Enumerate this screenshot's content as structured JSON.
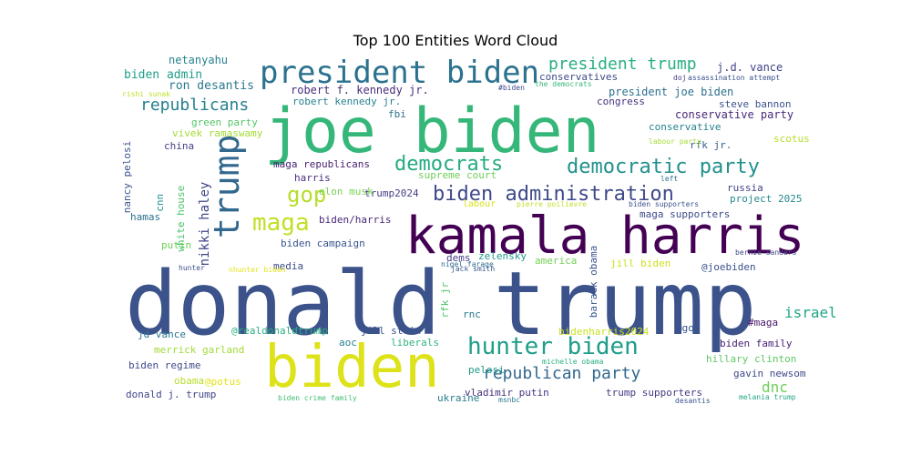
{
  "chart_data": {
    "type": "wordcloud",
    "title": "Top 100 Entities Word Cloud",
    "words": [
      {
        "text": "donald trump",
        "color": "#3b528b"
      },
      {
        "text": "joe biden",
        "color": "#35b779"
      },
      {
        "text": "kamala harris",
        "color": "#440154"
      },
      {
        "text": "biden",
        "color": "#dde318"
      },
      {
        "text": "president biden",
        "color": "#2c728e"
      },
      {
        "text": "trump",
        "color": "#31688e"
      },
      {
        "text": "hunter biden",
        "color": "#1f9e89"
      },
      {
        "text": "biden administration",
        "color": "#3e4989"
      },
      {
        "text": "democratic party",
        "color": "#21918c"
      },
      {
        "text": "democrats",
        "color": "#25ab82"
      },
      {
        "text": "maga",
        "color": "#c2df23"
      },
      {
        "text": "gop",
        "color": "#b5de2b"
      },
      {
        "text": "republicans",
        "color": "#27808e"
      },
      {
        "text": "president trump",
        "color": "#29af7f"
      },
      {
        "text": "republican party",
        "color": "#31688e"
      },
      {
        "text": "israel",
        "color": "#21a685"
      },
      {
        "text": "nikki haley",
        "color": "#414487"
      },
      {
        "text": "dnc",
        "color": "#6ece58"
      },
      {
        "text": "biden admin",
        "color": "#1f9e89"
      },
      {
        "text": "ron desantis",
        "color": "#2a788e"
      },
      {
        "text": "netanyahu",
        "color": "#26828e"
      },
      {
        "text": "j.d. vance",
        "color": "#404387"
      },
      {
        "text": "robert f. kennedy jr.",
        "color": "#472c7a"
      },
      {
        "text": "robert kennedy jr.",
        "color": "#26818e"
      },
      {
        "text": "president joe biden",
        "color": "#2d708e"
      },
      {
        "text": "conservative party",
        "color": "#482878"
      },
      {
        "text": "steve bannon",
        "color": "#3b528b"
      },
      {
        "text": "conservatives",
        "color": "#3e4a89"
      },
      {
        "text": "conservative",
        "color": "#25838e"
      },
      {
        "text": "congress",
        "color": "#46327e"
      },
      {
        "text": "green party",
        "color": "#54c568"
      },
      {
        "text": "vivek ramaswamy",
        "color": "#a5db36"
      },
      {
        "text": "nancy pelosi",
        "color": "#3a548c"
      },
      {
        "text": "china",
        "color": "#433e85"
      },
      {
        "text": "rfk jr.",
        "color": "#34608d"
      },
      {
        "text": "scotus",
        "color": "#b5de2b"
      },
      {
        "text": "maga republicans",
        "color": "#482071"
      },
      {
        "text": "supreme court",
        "color": "#6ece58"
      },
      {
        "text": "harris",
        "color": "#472d7b"
      },
      {
        "text": "trump2024",
        "color": "#423f85"
      },
      {
        "text": "elon musk",
        "color": "#7ad151"
      },
      {
        "text": "biden/harris",
        "color": "#482878"
      },
      {
        "text": "white house",
        "color": "#4ac16d"
      },
      {
        "text": "russia",
        "color": "#404387"
      },
      {
        "text": "project 2025",
        "color": "#23898e"
      },
      {
        "text": "maga supporters",
        "color": "#3e4c8a"
      },
      {
        "text": "hamas",
        "color": "#2c718e"
      },
      {
        "text": "cnn",
        "color": "#21908d"
      },
      {
        "text": "putin",
        "color": "#6ece58"
      },
      {
        "text": "biden campaign",
        "color": "#3a548c"
      },
      {
        "text": "zelensky",
        "color": "#1f988b"
      },
      {
        "text": "america",
        "color": "#75d054"
      },
      {
        "text": "media",
        "color": "#3d4d8a"
      },
      {
        "text": "dems",
        "color": "#433e85"
      },
      {
        "text": "barack obama",
        "color": "#39558c"
      },
      {
        "text": "jill biden",
        "color": "#cde11d"
      },
      {
        "text": "@joebiden",
        "color": "#3b528b"
      },
      {
        "text": "rfk jr",
        "color": "#4ac16d"
      },
      {
        "text": "rnc",
        "color": "#2a788e"
      },
      {
        "text": "#maga",
        "color": "#481467"
      },
      {
        "text": "@gop",
        "color": "#39568c"
      },
      {
        "text": "@realdonaldtrump",
        "color": "#29af7f"
      },
      {
        "text": "jill stein",
        "color": "#3b528b"
      },
      {
        "text": "aoc",
        "color": "#26828e"
      },
      {
        "text": "liberals",
        "color": "#2eb37c"
      },
      {
        "text": "jd vance",
        "color": "#2a768e"
      },
      {
        "text": "merrick garland",
        "color": "#a2da37"
      },
      {
        "text": "biden regime",
        "color": "#3e4989"
      },
      {
        "text": "obama",
        "color": "#b8de29"
      },
      {
        "text": "@potus",
        "color": "#e2e418"
      },
      {
        "text": "donald j. trump",
        "color": "#3f4788"
      },
      {
        "text": "pelosi",
        "color": "#1f9a8a"
      },
      {
        "text": "ukraine",
        "color": "#287c8e"
      },
      {
        "text": "vladimir putin",
        "color": "#462f7e"
      },
      {
        "text": "trump supporters",
        "color": "#443983"
      },
      {
        "text": "biden family",
        "color": "#482173"
      },
      {
        "text": "hillary clinton",
        "color": "#5cc863"
      },
      {
        "text": "gavin newsom",
        "color": "#3e4a89"
      },
      {
        "text": "bidenharris2024",
        "color": "#cae11f"
      },
      {
        "text": "labour",
        "color": "#d8e219"
      },
      {
        "text": "pierre poilievre",
        "color": "#c0df25"
      },
      {
        "text": "biden supporters",
        "color": "#3b528b"
      },
      {
        "text": "left",
        "color": "#2d708e"
      },
      {
        "text": "fbi",
        "color": "#2c728e"
      },
      {
        "text": "labour party",
        "color": "#a5db36"
      },
      {
        "text": "doj",
        "color": "#453781"
      },
      {
        "text": "assassination attempt",
        "color": "#3b528b"
      },
      {
        "text": "#biden",
        "color": "#3e4c8a"
      },
      {
        "text": "the democrats",
        "color": "#35b779"
      },
      {
        "text": "rishi sunak",
        "color": "#bddf26"
      },
      {
        "text": "hunter",
        "color": "#3b528b"
      },
      {
        "text": "nhunter biden",
        "color": "#e5e419"
      },
      {
        "text": "jack smith",
        "color": "#38598c"
      },
      {
        "text": "nigel farage",
        "color": "#2f6b8e"
      },
      {
        "text": "bernie sanders",
        "color": "#3f4889"
      },
      {
        "text": "michelle obama",
        "color": "#29af7f"
      },
      {
        "text": "msnbc",
        "color": "#2a788e"
      },
      {
        "text": "biden crime family",
        "color": "#40bd72"
      },
      {
        "text": "desantis",
        "color": "#3b528b"
      },
      {
        "text": "melania trump",
        "color": "#22a785"
      }
    ]
  }
}
